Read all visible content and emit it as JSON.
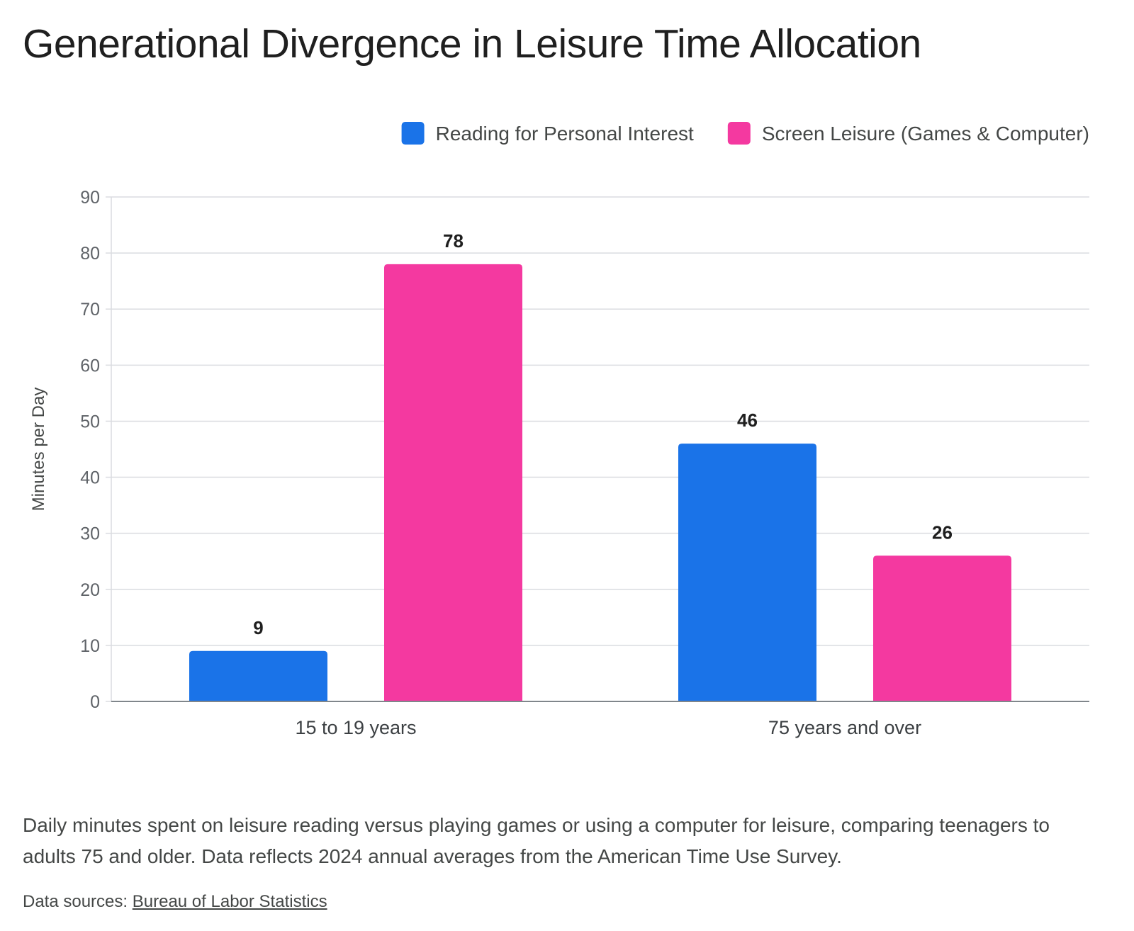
{
  "title": "Generational Divergence in Leisure Time Allocation",
  "caption": "Daily minutes spent on leisure reading versus playing games or using a computer for leisure, comparing teenagers to adults 75 and older. Data reflects 2024 annual averages from the American Time Use Survey.",
  "sources": {
    "prefix": "Data sources:",
    "link_label": "Bureau of Labor Statistics"
  },
  "colors": {
    "reading": "#1a73e8",
    "screen": "#f439a0",
    "grid": "#dadce0",
    "axis": "#80868b",
    "tick_text": "#5f6368",
    "label_text": "#1f1f1f"
  },
  "chart_data": {
    "type": "bar",
    "categories": [
      "15 to 19 years",
      "75 years and over"
    ],
    "series": [
      {
        "name": "Reading for Personal Interest",
        "values": [
          9,
          46
        ],
        "color": "#1a73e8"
      },
      {
        "name": "Screen Leisure (Games & Computer)",
        "values": [
          78,
          26
        ],
        "color": "#f439a0"
      }
    ],
    "ylabel": "Minutes per Day",
    "xlabel": "",
    "ylim": [
      0,
      90
    ],
    "yticks": [
      0,
      10,
      20,
      30,
      40,
      50,
      60,
      70,
      80,
      90
    ],
    "grid": true,
    "legend": "top-right",
    "data_labels": true
  }
}
